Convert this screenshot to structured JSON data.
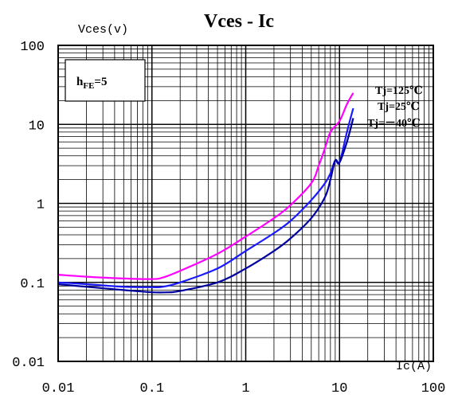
{
  "chart_data": {
    "type": "line",
    "title": "Vces - Ic",
    "ylabel": "Vces(v)",
    "xlabel": "Ic(A)",
    "x_scale": "log",
    "y_scale": "log",
    "xlim": [
      0.01,
      100
    ],
    "ylim": [
      0.01,
      100
    ],
    "x_ticks": [
      "0.01",
      "0.1",
      "1",
      "10",
      "100"
    ],
    "y_ticks": [
      "100",
      "10",
      "1",
      "0.1",
      "0.01"
    ],
    "grid": true,
    "condition_label": "hFE=5",
    "condition_main": "h",
    "condition_sub": "FE",
    "condition_value": "=5",
    "series": [
      {
        "name": "Tj=125℃",
        "color": "#ff00ff",
        "points": [
          [
            0.01,
            0.125
          ],
          [
            0.02,
            0.118
          ],
          [
            0.05,
            0.112
          ],
          [
            0.1,
            0.11
          ],
          [
            0.13,
            0.115
          ],
          [
            0.2,
            0.14
          ],
          [
            0.5,
            0.23
          ],
          [
            1,
            0.38
          ],
          [
            2,
            0.65
          ],
          [
            3,
            0.95
          ],
          [
            5,
            1.8
          ],
          [
            6,
            3
          ],
          [
            7,
            5
          ],
          [
            8,
            8
          ],
          [
            10,
            11
          ],
          [
            12,
            18
          ],
          [
            14,
            25
          ]
        ]
      },
      {
        "name": "Tj=25℃",
        "color": "#1a1aff",
        "points": [
          [
            0.01,
            0.1
          ],
          [
            0.02,
            0.095
          ],
          [
            0.05,
            0.088
          ],
          [
            0.1,
            0.087
          ],
          [
            0.13,
            0.088
          ],
          [
            0.2,
            0.1
          ],
          [
            0.5,
            0.15
          ],
          [
            1,
            0.25
          ],
          [
            2,
            0.42
          ],
          [
            3,
            0.6
          ],
          [
            5,
            1.1
          ],
          [
            7,
            1.8
          ],
          [
            8,
            2.4
          ],
          [
            9,
            3.5
          ],
          [
            10,
            3.3
          ],
          [
            12,
            8
          ],
          [
            14,
            16
          ]
        ]
      },
      {
        "name": "Tj=－40℃",
        "color": "#0000a0",
        "points": [
          [
            0.01,
            0.095
          ],
          [
            0.02,
            0.088
          ],
          [
            0.05,
            0.08
          ],
          [
            0.1,
            0.075
          ],
          [
            0.15,
            0.075
          ],
          [
            0.2,
            0.078
          ],
          [
            0.5,
            0.1
          ],
          [
            1,
            0.15
          ],
          [
            2,
            0.25
          ],
          [
            3,
            0.36
          ],
          [
            5,
            0.65
          ],
          [
            7,
            1.2
          ],
          [
            8,
            2
          ],
          [
            9,
            3.5
          ],
          [
            10,
            3.3
          ],
          [
            12,
            6
          ],
          [
            14,
            12
          ]
        ]
      }
    ]
  }
}
